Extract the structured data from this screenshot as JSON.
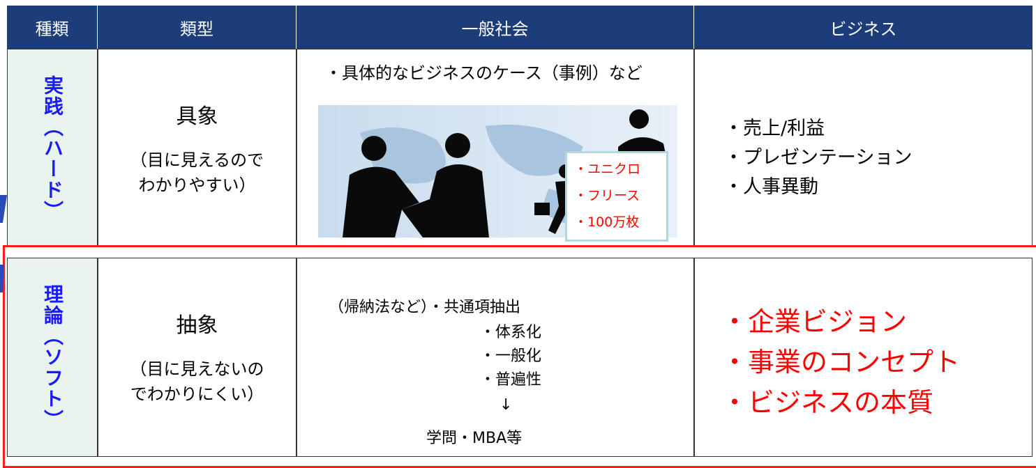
{
  "table": {
    "header": [
      "種類",
      "類型",
      "一般社会",
      "ビジネス"
    ],
    "rows": [
      {
        "kind": "実践（ハード）",
        "type": "具象",
        "type_note": [
          "（目に見えるので",
          "わかりやすい）"
        ],
        "general": {
          "caption": "・具体的なビジネスのケース（事例）など",
          "image_labels": [
            "・ユニクロ",
            "・フリース",
            "・100万枚"
          ]
        },
        "business": [
          "・売上/利益",
          "・プレゼンテーション",
          "・人事異動"
        ]
      },
      {
        "kind": "理論（ソフト）",
        "type": "抽象",
        "type_note": [
          "（目に見えないの",
          "でわかりにくい）"
        ],
        "general": {
          "lines": [
            "（帰納法など）・共通項抽出",
            "・体系化",
            "・一般化",
            "・普遍性",
            "↓",
            "学問・MBA等"
          ]
        },
        "business": [
          "・企業ビジョン",
          "・事業のコンセプト",
          "・ビジネスの本質"
        ]
      }
    ]
  }
}
